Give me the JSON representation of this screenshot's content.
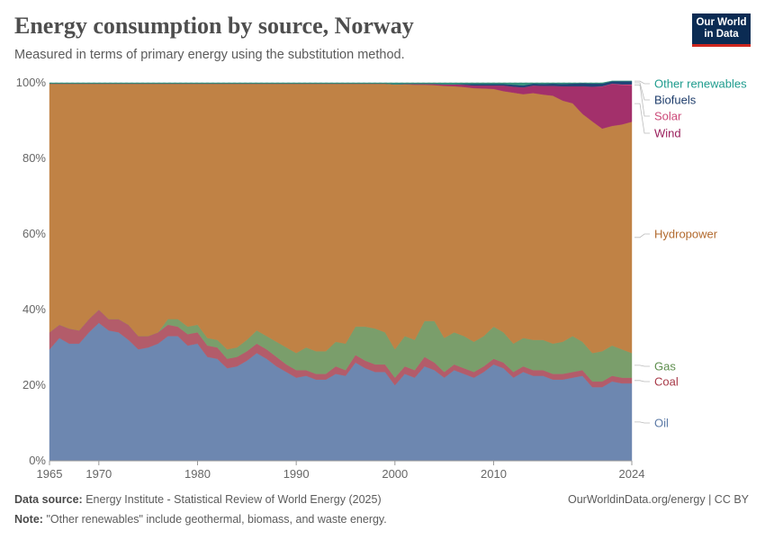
{
  "header": {
    "title": "Energy consumption by source, Norway",
    "subtitle": "Measured in terms of primary energy using the substitution method.",
    "logo_line1": "Our World",
    "logo_line2": "in Data"
  },
  "footer": {
    "source_label": "Data source:",
    "source_text": "Energy Institute - Statistical Review of World Energy (2025)",
    "note_label": "Note:",
    "note_text": "\"Other renewables\" include geothermal, biomass, and waste energy.",
    "link_text": "OurWorldinData.org/energy | CC BY"
  },
  "chart_data": {
    "type": "area",
    "stacked": true,
    "title": "Energy consumption by source, Norway",
    "xlabel": "",
    "ylabel": "",
    "xlim": [
      1965,
      2024
    ],
    "ylim": [
      0,
      100
    ],
    "x_ticks": [
      "1965",
      "1970",
      "1980",
      "1990",
      "2000",
      "2010",
      "2024"
    ],
    "y_ticks": [
      "0%",
      "20%",
      "40%",
      "60%",
      "80%",
      "100%"
    ],
    "grid": true,
    "legend_position": "right",
    "x": [
      1965,
      1966,
      1967,
      1968,
      1969,
      1970,
      1971,
      1972,
      1973,
      1974,
      1975,
      1976,
      1977,
      1978,
      1979,
      1980,
      1981,
      1982,
      1983,
      1984,
      1985,
      1986,
      1987,
      1988,
      1989,
      1990,
      1991,
      1992,
      1993,
      1994,
      1995,
      1996,
      1997,
      1998,
      1999,
      2000,
      2001,
      2002,
      2003,
      2004,
      2005,
      2006,
      2007,
      2008,
      2009,
      2010,
      2011,
      2012,
      2013,
      2014,
      2015,
      2016,
      2017,
      2018,
      2019,
      2020,
      2021,
      2022,
      2023,
      2024
    ],
    "series": [
      {
        "name": "Oil",
        "color": "#6d87b0",
        "label_color": "#5c7aa6",
        "values": [
          29.5,
          32.5,
          31,
          31,
          34,
          36.5,
          34.5,
          34,
          32,
          29.5,
          30,
          31,
          33,
          33,
          30.5,
          31,
          27.5,
          27,
          24.5,
          25,
          26.5,
          28.5,
          27,
          25,
          23.5,
          22,
          22.5,
          21.5,
          21.5,
          23,
          22.5,
          26,
          24.5,
          23.5,
          23.5,
          20,
          23,
          22,
          25,
          24,
          22,
          24,
          23,
          22,
          23.5,
          25.5,
          24.5,
          22,
          23.5,
          22.5,
          22.5,
          21.5,
          21.5,
          22,
          22.5,
          19.5,
          19.5,
          21,
          20.5,
          20.5
        ]
      },
      {
        "name": "Coal",
        "color": "#b35c6a",
        "label_color": "#a83a48",
        "values": [
          4.5,
          3.5,
          4,
          3.5,
          3.5,
          3.5,
          3,
          3.5,
          4,
          3.5,
          3,
          3,
          3,
          2.5,
          3,
          3,
          3,
          3,
          2.5,
          2.5,
          2.5,
          2.5,
          2.5,
          2.5,
          2,
          2,
          1.5,
          1.5,
          1.5,
          2,
          1.5,
          2,
          2,
          2,
          2,
          2,
          2,
          2,
          2.5,
          2,
          1.5,
          1.5,
          1.5,
          1.5,
          1.5,
          1.5,
          1.5,
          1.5,
          1.5,
          1.5,
          1.5,
          1.5,
          1.5,
          1.5,
          1.5,
          1.5,
          1.5,
          1.5,
          1.5,
          1.5
        ]
      },
      {
        "name": "Gas",
        "color": "#7a9e6b",
        "label_color": "#5e8e4e",
        "values": [
          0,
          0,
          0,
          0,
          0,
          0,
          0,
          0,
          0,
          0,
          0,
          0,
          1.5,
          2,
          2,
          2,
          2,
          2,
          2.5,
          2.5,
          3,
          3.5,
          3.5,
          4,
          4.5,
          4.5,
          6,
          6,
          6,
          6.5,
          7,
          7.5,
          9,
          9.5,
          8.5,
          7.5,
          8,
          8,
          9.5,
          11,
          9,
          8.5,
          8.5,
          8,
          8,
          8.5,
          8,
          7.5,
          7.5,
          8,
          8,
          8,
          8.5,
          9.5,
          7.5,
          7.5,
          8,
          8,
          7.5,
          6.5
        ]
      },
      {
        "name": "Hydropower",
        "color": "#c08245",
        "label_color": "#b26a2e",
        "values": [
          65.8,
          63.8,
          64.8,
          65.3,
          62.3,
          59.8,
          62.3,
          62.3,
          63.8,
          66.8,
          66.8,
          65.8,
          62.3,
          62.3,
          64.3,
          63.8,
          67.3,
          67.8,
          70.3,
          69.8,
          67.8,
          65.3,
          66.8,
          68.3,
          69.8,
          71.3,
          69.8,
          70.8,
          70.8,
          68.3,
          68.8,
          64.3,
          64.3,
          64.8,
          65.8,
          70.1,
          66.6,
          67.5,
          62.5,
          62.4,
          66.7,
          65.1,
          65.9,
          67.1,
          65.5,
          62.9,
          63.8,
          66.4,
          64.5,
          65.3,
          64.9,
          65.6,
          63.8,
          61.6,
          60.3,
          61.3,
          58.9,
          58.1,
          59.5,
          61.2
        ]
      },
      {
        "name": "Wind",
        "color": "#a3306b",
        "label_color": "#9a1f5c",
        "values": [
          0,
          0,
          0,
          0,
          0,
          0,
          0,
          0,
          0,
          0,
          0,
          0,
          0,
          0,
          0,
          0,
          0,
          0,
          0,
          0,
          0,
          0,
          0,
          0,
          0,
          0,
          0,
          0,
          0,
          0,
          0,
          0,
          0,
          0,
          0,
          0,
          0.1,
          0.2,
          0.2,
          0.3,
          0.4,
          0.5,
          0.6,
          0.7,
          0.8,
          0.9,
          1.5,
          1.6,
          1.8,
          2,
          2.3,
          2.6,
          3.8,
          4.5,
          7.3,
          9.2,
          11.1,
          11.1,
          10.4,
          9.6
        ]
      },
      {
        "name": "Solar",
        "color": "#d1497b",
        "label_color": "#cc4979",
        "values": [
          0,
          0,
          0,
          0,
          0,
          0,
          0,
          0,
          0,
          0,
          0,
          0,
          0,
          0,
          0,
          0,
          0,
          0,
          0,
          0,
          0,
          0,
          0,
          0,
          0,
          0,
          0,
          0,
          0,
          0,
          0,
          0,
          0,
          0,
          0,
          0,
          0,
          0,
          0,
          0,
          0,
          0,
          0,
          0,
          0,
          0,
          0,
          0,
          0,
          0,
          0,
          0,
          0,
          0,
          0,
          0,
          0.1,
          0.1,
          0.2,
          0.3
        ]
      },
      {
        "name": "Biofuels",
        "color": "#1f4477",
        "label_color": "#1e3d6b",
        "values": [
          0,
          0,
          0,
          0,
          0,
          0,
          0,
          0,
          0,
          0,
          0,
          0,
          0,
          0,
          0,
          0,
          0,
          0,
          0,
          0,
          0,
          0,
          0,
          0,
          0,
          0,
          0,
          0,
          0,
          0,
          0,
          0,
          0,
          0,
          0,
          0,
          0,
          0,
          0,
          0,
          0,
          0,
          0.2,
          0.4,
          0.4,
          0.4,
          0.4,
          0.5,
          0.5,
          0.5,
          0.5,
          0.6,
          0.6,
          0.7,
          0.8,
          0.8,
          0.7,
          0.6,
          0.8,
          0.8
        ]
      },
      {
        "name": "Other renewables",
        "color": "#37927e",
        "label_color": "#1f9c8e",
        "values": [
          0.2,
          0.2,
          0.2,
          0.2,
          0.2,
          0.2,
          0.2,
          0.2,
          0.2,
          0.2,
          0.2,
          0.2,
          0.2,
          0.2,
          0.2,
          0.2,
          0.2,
          0.2,
          0.2,
          0.2,
          0.2,
          0.2,
          0.2,
          0.2,
          0.2,
          0.2,
          0.2,
          0.2,
          0.2,
          0.2,
          0.2,
          0.2,
          0.2,
          0.2,
          0.2,
          0.4,
          0.3,
          0.3,
          0.3,
          0.3,
          0.4,
          0.4,
          0.3,
          0.3,
          0.3,
          0.3,
          0.3,
          0.5,
          0.7,
          0.2,
          0.3,
          0.2,
          0.3,
          0.2,
          0.1,
          0.2,
          0.2,
          0.1,
          0.1,
          0.1
        ]
      }
    ]
  }
}
